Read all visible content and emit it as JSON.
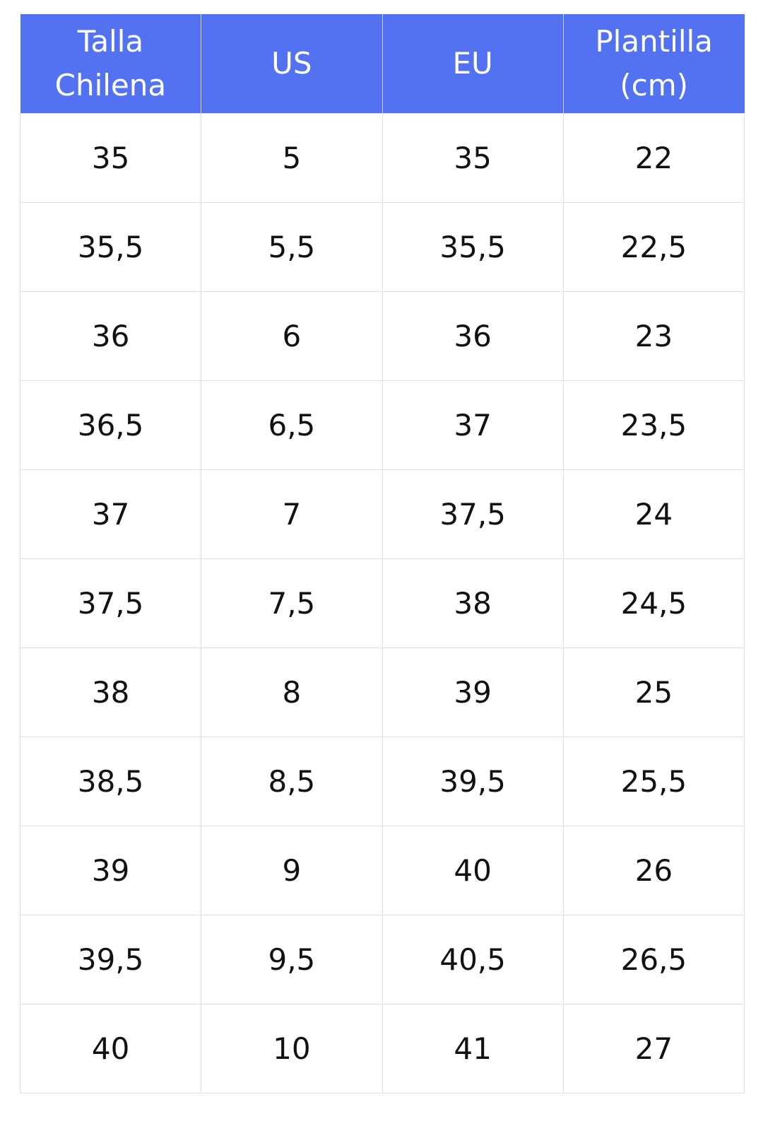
{
  "colors": {
    "header_bg": "#5272f2",
    "header_text": "#ffffff",
    "cell_text": "#111111",
    "grid": "#e0e0e0"
  },
  "headers": [
    "Talla Chilena",
    "US",
    "EU",
    "Plantilla (cm)"
  ],
  "rows": [
    [
      "35",
      "5",
      "35",
      "22"
    ],
    [
      "35,5",
      "5,5",
      "35,5",
      "22,5"
    ],
    [
      "36",
      "6",
      "36",
      "23"
    ],
    [
      "36,5",
      "6,5",
      "37",
      "23,5"
    ],
    [
      "37",
      "7",
      "37,5",
      "24"
    ],
    [
      "37,5",
      "7,5",
      "38",
      "24,5"
    ],
    [
      "38",
      "8",
      "39",
      "25"
    ],
    [
      "38,5",
      "8,5",
      "39,5",
      "25,5"
    ],
    [
      "39",
      "9",
      "40",
      "26"
    ],
    [
      "39,5",
      "9,5",
      "40,5",
      "26,5"
    ],
    [
      "40",
      "10",
      "41",
      "27"
    ]
  ]
}
